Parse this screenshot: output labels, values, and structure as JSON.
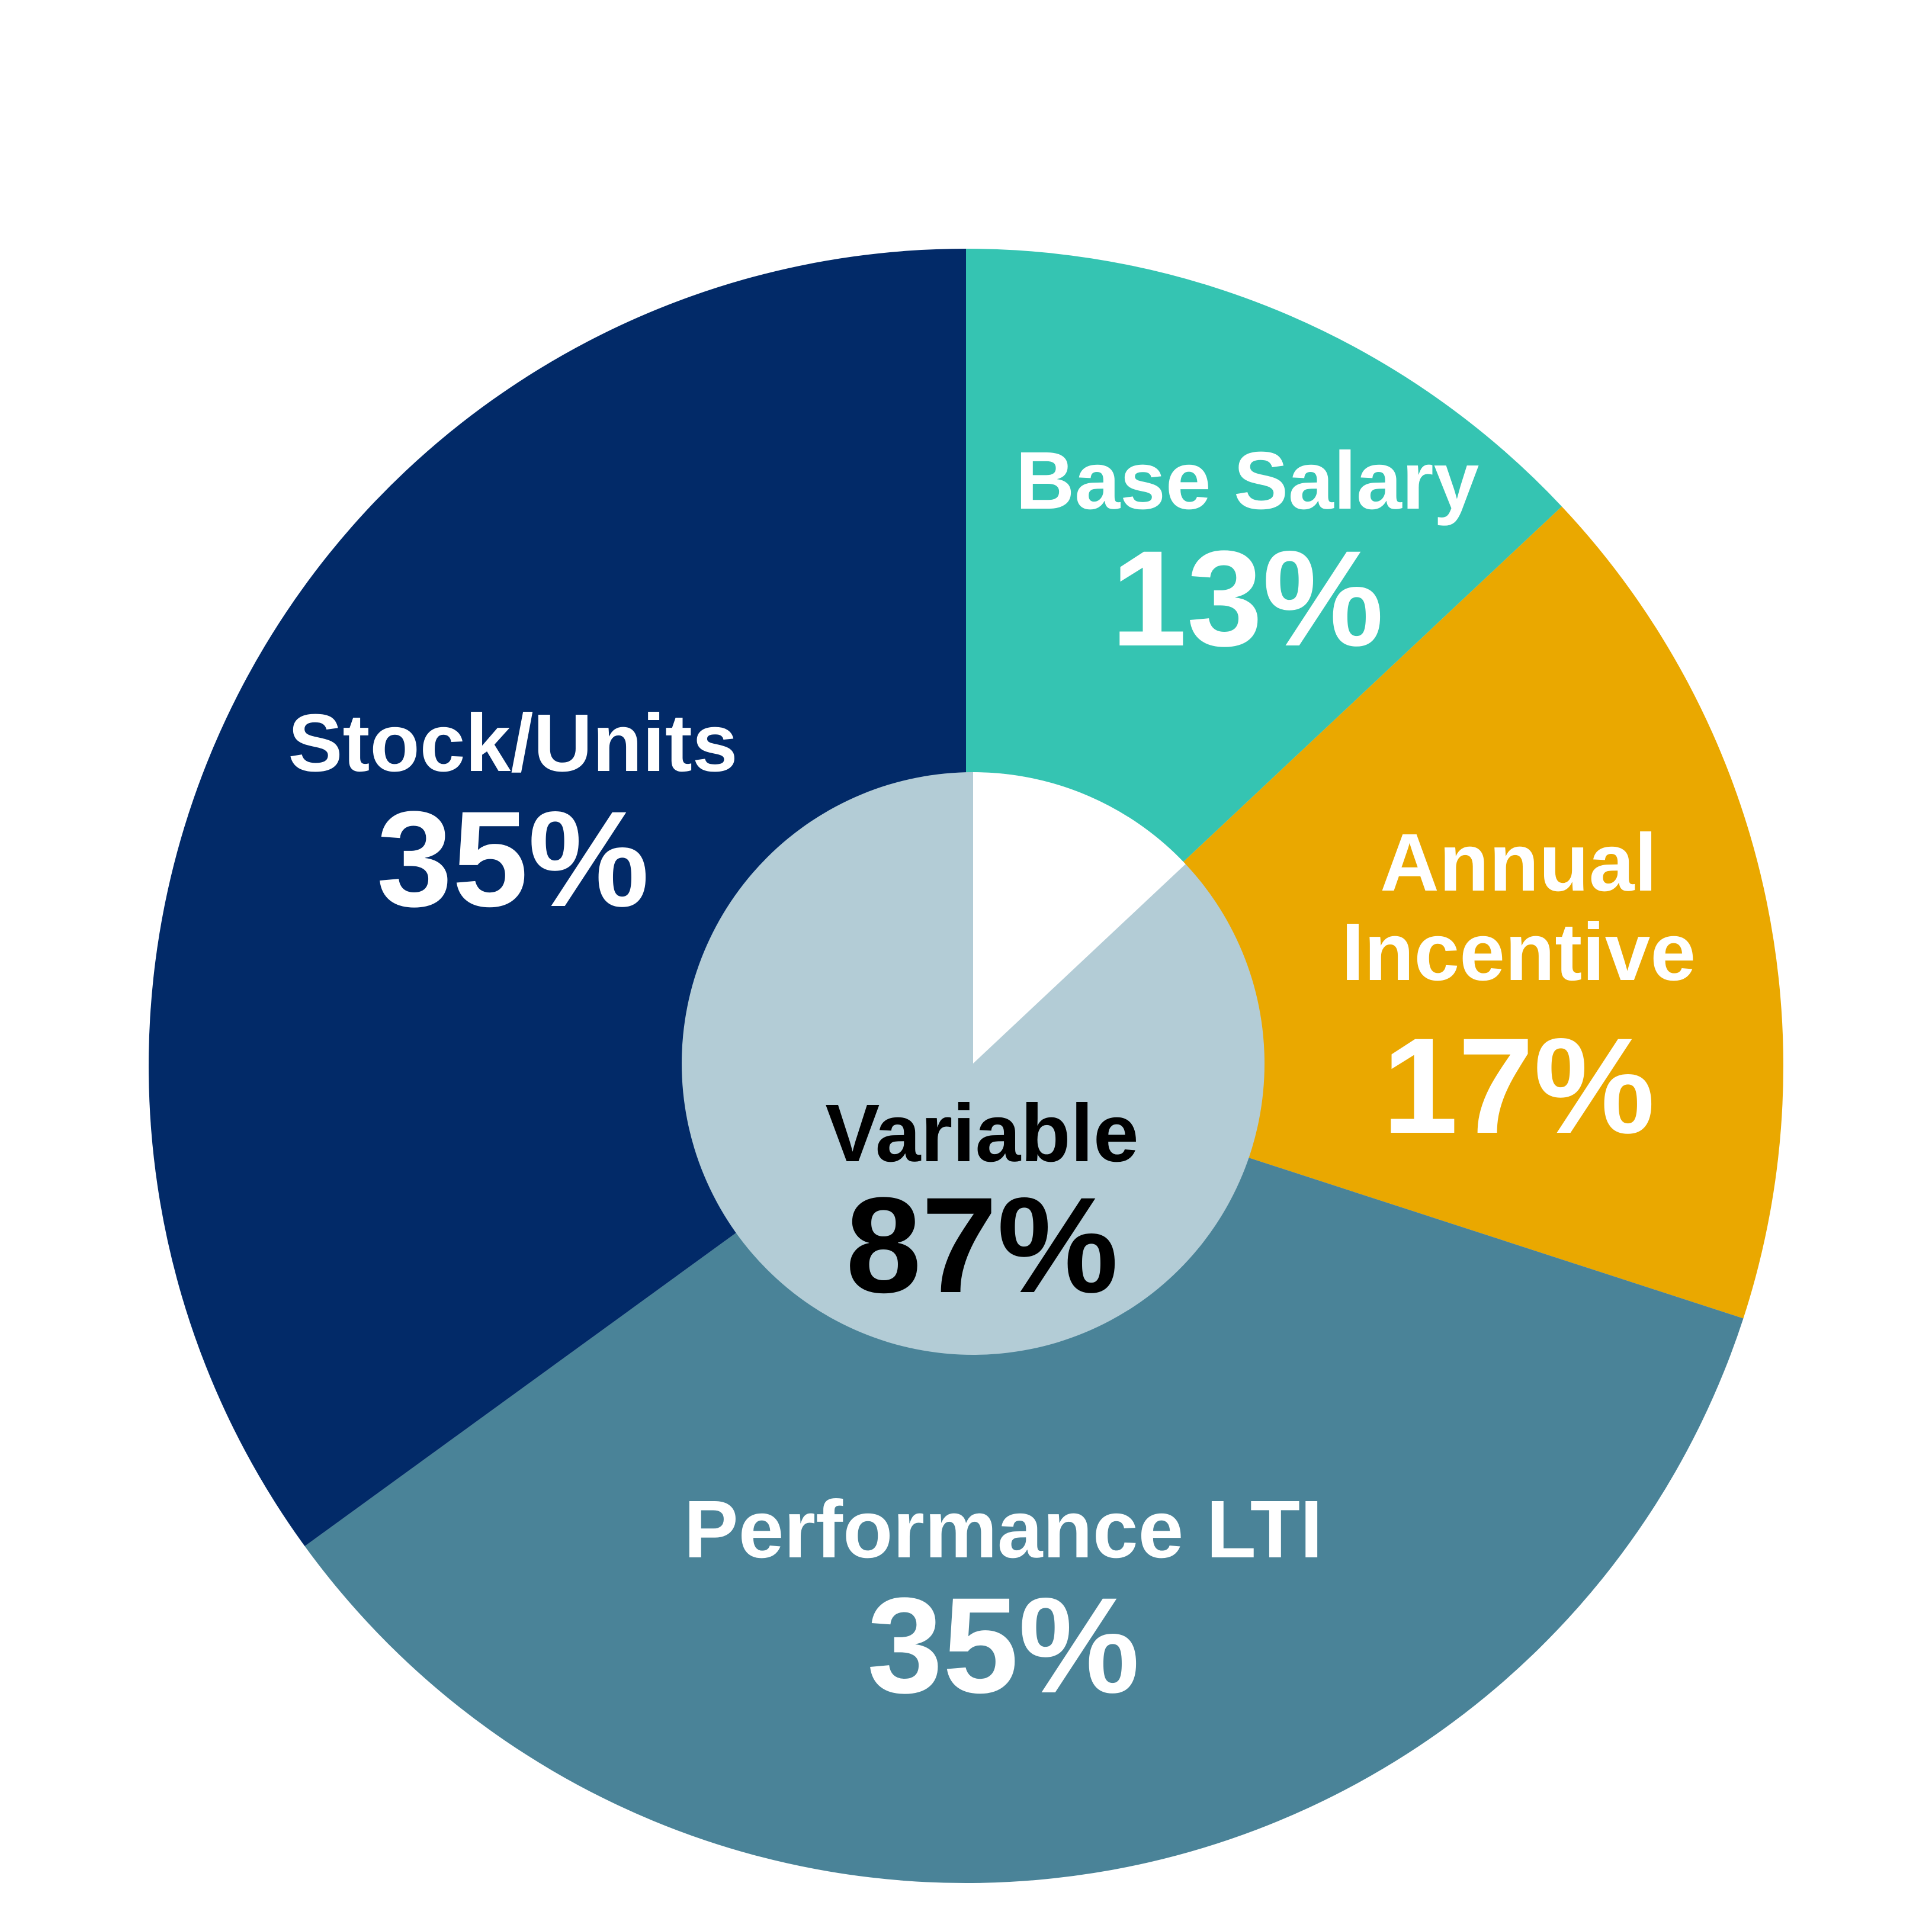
{
  "chart_data": {
    "type": "pie",
    "start_angle_deg": 0,
    "direction": "clockwise",
    "slices": [
      {
        "label_lines": [
          "Base Salary"
        ],
        "value": 13,
        "value_text": "13%",
        "color": "#35C4B2"
      },
      {
        "label_lines": [
          "Annual",
          "Incentive"
        ],
        "value": 17,
        "value_text": "17%",
        "color": "#EAA800"
      },
      {
        "label_lines": [
          "Performance LTI"
        ],
        "value": 35,
        "value_text": "35%",
        "color": "#4A8398"
      },
      {
        "label_lines": [
          "Stock/Units"
        ],
        "value": 35,
        "value_text": "35%",
        "color": "#022A68"
      }
    ],
    "inner": {
      "label": "Variable",
      "value": 87,
      "value_text": "87%",
      "color": "#B3CCD6",
      "highlight_color": "#FFFFFF"
    }
  }
}
